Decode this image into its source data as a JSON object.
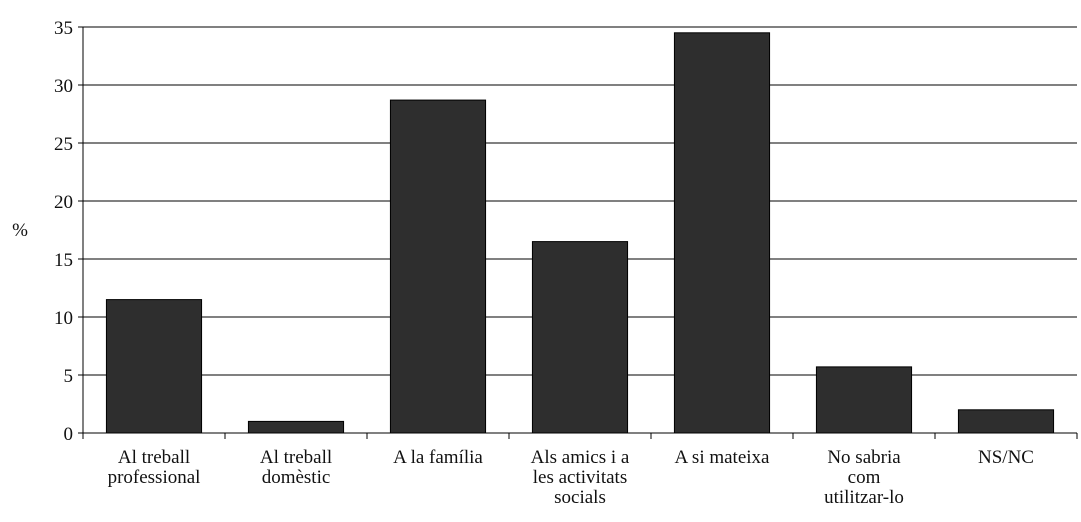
{
  "chart_data": {
    "type": "bar",
    "ylabel": "%",
    "categories": [
      "Al treball\nprofessional",
      "Al treball\ndomèstic",
      "A la família",
      "Als amics i a\nles activitats\nsocials",
      "A si mateixa",
      "No sabria\ncom\nutilitzar-lo",
      "NS/NC"
    ],
    "values": [
      11.5,
      1,
      28.7,
      16.5,
      34.5,
      5.7,
      2
    ],
    "color": "#2e2e2e",
    "ylim": [
      0,
      35
    ],
    "yticks": [
      0,
      5,
      10,
      15,
      20,
      25,
      30,
      35
    ],
    "grid": true
  }
}
